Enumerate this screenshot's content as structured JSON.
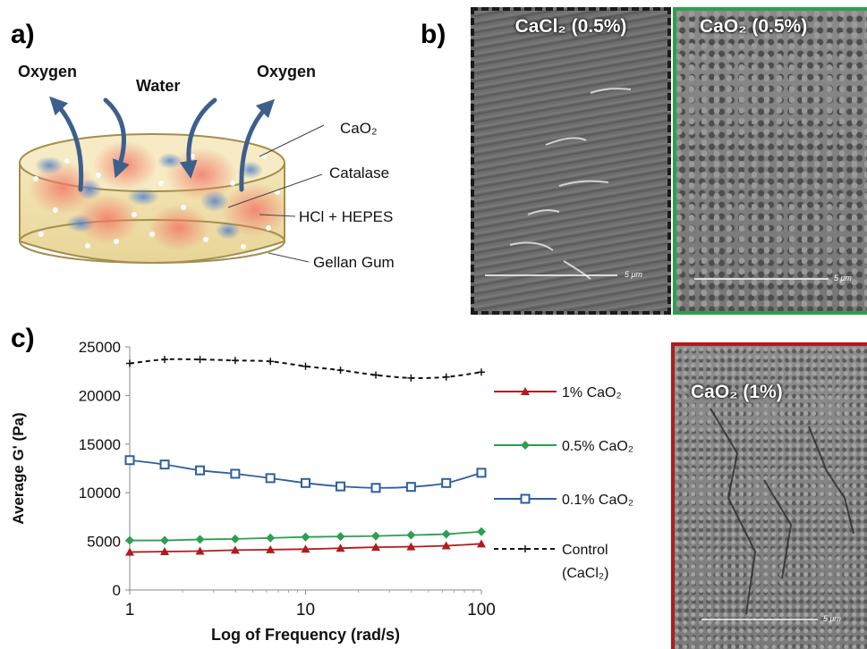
{
  "panel_a": {
    "letter": "a)",
    "flows": {
      "oxygen_left": "Oxygen",
      "water": "Water",
      "oxygen_right": "Oxygen"
    },
    "components": [
      "CaO₂",
      "Catalase",
      "HCl + HEPES",
      "Gellan Gum"
    ]
  },
  "panel_b": {
    "letter": "b)",
    "images": [
      {
        "label": "CaCl₂ (0.5%)",
        "border_color": "#1a1a1a",
        "scale": "5 μm"
      },
      {
        "label": "CaO₂ (0.5%)",
        "border_color": "#2e9e4f",
        "scale": "5 μm"
      }
    ]
  },
  "panel_c": {
    "letter": "c)",
    "sem_image": {
      "label": "CaO₂ (1%)",
      "border_color": "#b01c1c",
      "scale": "5 μm"
    }
  },
  "chart_data": {
    "type": "line",
    "xlabel": "Log of Frequency (rad/s)",
    "ylabel": "Average G' (Pa)",
    "xscale": "log",
    "xlim": [
      1,
      100
    ],
    "ylim": [
      0,
      25000
    ],
    "x_ticks": [
      "1",
      "10",
      "100"
    ],
    "y_ticks": [
      "0",
      "5000",
      "10000",
      "15000",
      "20000",
      "25000"
    ],
    "x": [
      1,
      1.58,
      2.51,
      3.98,
      6.31,
      10,
      15.8,
      25.1,
      39.8,
      63.1,
      100
    ],
    "series": [
      {
        "name": "1%  CaO₂",
        "color": "#b01c1c",
        "marker": "triangle",
        "dashed": false,
        "values": [
          3900,
          3950,
          4000,
          4100,
          4150,
          4200,
          4300,
          4400,
          4450,
          4550,
          4750
        ]
      },
      {
        "name": "0.5%  CaO₂",
        "color": "#2e9e4f",
        "marker": "diamond",
        "dashed": false,
        "values": [
          5100,
          5100,
          5200,
          5250,
          5350,
          5450,
          5500,
          5550,
          5650,
          5750,
          6000
        ]
      },
      {
        "name": "0.1%  CaO₂",
        "color": "#2e5f9e",
        "marker": "square",
        "dashed": false,
        "values": [
          13350,
          12900,
          12300,
          11950,
          11500,
          11000,
          10650,
          10500,
          10600,
          11000,
          12050
        ]
      },
      {
        "name": "Control (CaCl₂)",
        "color": "#111111",
        "marker": "plus",
        "dashed": true,
        "values": [
          23300,
          23700,
          23700,
          23600,
          23500,
          23000,
          22600,
          22100,
          21800,
          21900,
          22400
        ]
      }
    ],
    "legend_position": "right"
  }
}
